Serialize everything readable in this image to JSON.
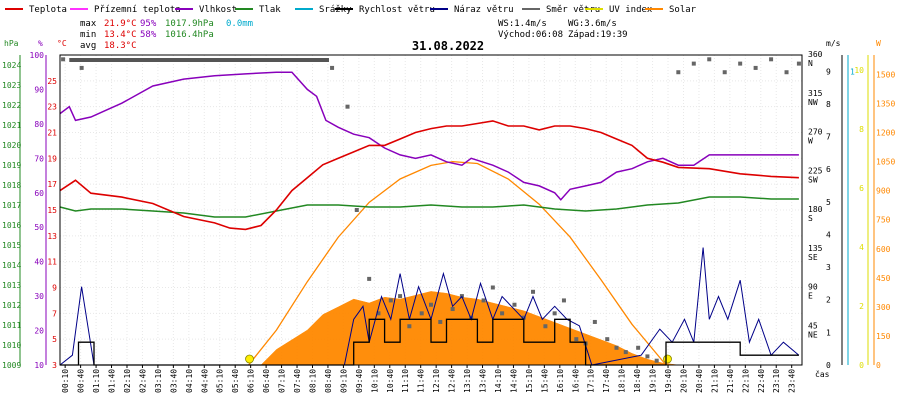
{
  "date": "31.08.2022",
  "legend": [
    {
      "label": "Teplota",
      "color": "#dd0000"
    },
    {
      "label": "Přízemní teplota",
      "color": "#ff33ff"
    },
    {
      "label": "Vlhkost",
      "color": "#8800bb"
    },
    {
      "label": "Tlak",
      "color": "#228822"
    },
    {
      "label": "Srážky",
      "color": "#00aacc"
    },
    {
      "label": "Rychlost větru",
      "color": "#000000"
    },
    {
      "label": "Náraz větru",
      "color": "#000088"
    },
    {
      "label": "Směr větru",
      "color": "#666666"
    },
    {
      "label": "UV index",
      "color": "#dddd00"
    },
    {
      "label": "Solar",
      "color": "#ff8800"
    }
  ],
  "stats": {
    "max_label": "max",
    "max_temp": "21.9°C",
    "max_hum": "95%",
    "max_press": "1017.9hPa",
    "max_rain": "0.0mm",
    "min_label": "min",
    "min_temp": "13.4°C",
    "min_hum": "58%",
    "min_press": "1016.4hPa",
    "avg_label": "avg",
    "avg_temp": "18.3°C",
    "ws": "WS:1.4m/s",
    "wg": "WG:3.6m/s",
    "sunrise": "Východ:06:08",
    "sunset": "Západ:19:39"
  },
  "axes": {
    "hpa_unit": "hPa",
    "pct_unit": "%",
    "temp_unit": "°C",
    "ms_unit": "m/s",
    "w_unit": "W",
    "hpa_ticks": [
      "1024",
      "1023",
      "1022",
      "1021",
      "1020",
      "1019",
      "1018",
      "1017",
      "1016",
      "1015",
      "1014",
      "1013",
      "1012",
      "1011",
      "1010",
      "1009"
    ],
    "pct_ticks": [
      "100",
      "90",
      "80",
      "70",
      "60",
      "50",
      "40",
      "30",
      "20",
      "10"
    ],
    "temp_ticks": [
      "25",
      "23",
      "21",
      "19",
      "17",
      "15",
      "13",
      "11",
      "9",
      "7",
      "5",
      "3"
    ],
    "dir_ticks": [
      "360",
      "N",
      "315",
      "NW",
      "270",
      "W",
      "225",
      "SW",
      "180",
      "S",
      "135",
      "SE",
      "90",
      "E",
      "45",
      "NE"
    ],
    "ms_ticks": [
      "9",
      "8",
      "7",
      "6",
      "5",
      "4",
      "3",
      "2",
      "1",
      "0"
    ],
    "uv_ticks": [
      "10",
      "8",
      "6",
      "4",
      "2",
      "0"
    ],
    "w_ticks": [
      "1500",
      "1350",
      "1200",
      "1050",
      "900",
      "750",
      "600",
      "450",
      "300",
      "150",
      "0"
    ],
    "time_label": "čas",
    "time_ticks": [
      "00:10",
      "00:40",
      "01:10",
      "01:40",
      "02:10",
      "02:40",
      "03:10",
      "03:40",
      "04:10",
      "04:40",
      "05:10",
      "05:40",
      "06:10",
      "06:40",
      "07:10",
      "07:40",
      "08:10",
      "08:40",
      "09:10",
      "09:40",
      "10:10",
      "10:40",
      "11:10",
      "11:40",
      "12:10",
      "12:40",
      "13:10",
      "13:40",
      "14:10",
      "14:40",
      "15:10",
      "15:40",
      "16:10",
      "16:40",
      "17:10",
      "17:40",
      "18:10",
      "18:40",
      "19:10",
      "19:40",
      "20:10",
      "20:40",
      "21:10",
      "21:40",
      "22:10",
      "22:40",
      "23:10",
      "23:40"
    ]
  },
  "chart_data": {
    "type": "line",
    "x_unit": "hour",
    "temp_range": [
      3,
      27
    ],
    "humidity_range": [
      10,
      100
    ],
    "pressure_range": [
      1009,
      1024.5
    ],
    "wind_range": [
      0,
      9.5
    ],
    "solar_range": [
      0,
      1600
    ],
    "dir_range": [
      0,
      360
    ],
    "temperature": [
      [
        0,
        16.5
      ],
      [
        0.5,
        17.3
      ],
      [
        1,
        16.3
      ],
      [
        2,
        16
      ],
      [
        3,
        15.5
      ],
      [
        4,
        14.5
      ],
      [
        5,
        14
      ],
      [
        5.5,
        13.6
      ],
      [
        6,
        13.5
      ],
      [
        6.5,
        13.8
      ],
      [
        7,
        15
      ],
      [
        7.5,
        16.5
      ],
      [
        8,
        17.5
      ],
      [
        8.5,
        18.5
      ],
      [
        9,
        19
      ],
      [
        9.5,
        19.5
      ],
      [
        10,
        20
      ],
      [
        10.5,
        20
      ],
      [
        11,
        20.5
      ],
      [
        11.5,
        21
      ],
      [
        12,
        21.3
      ],
      [
        12.5,
        21.5
      ],
      [
        13,
        21.5
      ],
      [
        13.5,
        21.7
      ],
      [
        14,
        21.9
      ],
      [
        14.5,
        21.5
      ],
      [
        15,
        21.5
      ],
      [
        15.5,
        21.2
      ],
      [
        16,
        21.5
      ],
      [
        16.5,
        21.5
      ],
      [
        17,
        21.3
      ],
      [
        17.5,
        21
      ],
      [
        18,
        20.5
      ],
      [
        18.5,
        20
      ],
      [
        19,
        19
      ],
      [
        19.5,
        18.7
      ],
      [
        20,
        18.3
      ],
      [
        21,
        18.2
      ],
      [
        22,
        17.8
      ],
      [
        23,
        17.6
      ],
      [
        23.9,
        17.5
      ]
    ],
    "humidity": [
      [
        0,
        83
      ],
      [
        0.3,
        85
      ],
      [
        0.5,
        81
      ],
      [
        1,
        82
      ],
      [
        1.5,
        84
      ],
      [
        2,
        86
      ],
      [
        3,
        91
      ],
      [
        4,
        93
      ],
      [
        5,
        94
      ],
      [
        6,
        94.5
      ],
      [
        7,
        95
      ],
      [
        7.5,
        95
      ],
      [
        8,
        90
      ],
      [
        8.3,
        88
      ],
      [
        8.6,
        81
      ],
      [
        9,
        79
      ],
      [
        9.5,
        77
      ],
      [
        10,
        76
      ],
      [
        10.5,
        73
      ],
      [
        11,
        71
      ],
      [
        11.5,
        70
      ],
      [
        12,
        71
      ],
      [
        12.5,
        69
      ],
      [
        13,
        68
      ],
      [
        13.3,
        70
      ],
      [
        14,
        68
      ],
      [
        14.5,
        66
      ],
      [
        15,
        63
      ],
      [
        15.5,
        62
      ],
      [
        16,
        60
      ],
      [
        16.2,
        58
      ],
      [
        16.5,
        61
      ],
      [
        17,
        62
      ],
      [
        17.5,
        63
      ],
      [
        18,
        66
      ],
      [
        18.5,
        67
      ],
      [
        19,
        69
      ],
      [
        19.5,
        70
      ],
      [
        20,
        68
      ],
      [
        20.5,
        68
      ],
      [
        21,
        71
      ],
      [
        22,
        71
      ],
      [
        23,
        71
      ],
      [
        23.9,
        71
      ]
    ],
    "pressure": [
      [
        0,
        1016.9
      ],
      [
        0.5,
        1016.7
      ],
      [
        1,
        1016.8
      ],
      [
        2,
        1016.8
      ],
      [
        3,
        1016.7
      ],
      [
        4,
        1016.6
      ],
      [
        5,
        1016.4
      ],
      [
        6,
        1016.4
      ],
      [
        7,
        1016.7
      ],
      [
        8,
        1017
      ],
      [
        9,
        1017
      ],
      [
        10,
        1016.9
      ],
      [
        11,
        1016.9
      ],
      [
        12,
        1017
      ],
      [
        13,
        1016.9
      ],
      [
        14,
        1016.9
      ],
      [
        15,
        1017
      ],
      [
        16,
        1016.8
      ],
      [
        17,
        1016.7
      ],
      [
        18,
        1016.8
      ],
      [
        19,
        1017
      ],
      [
        20,
        1017.1
      ],
      [
        21,
        1017.4
      ],
      [
        22,
        1017.4
      ],
      [
        23,
        1017.3
      ],
      [
        23.9,
        1017.3
      ]
    ],
    "solar": [
      [
        0,
        0
      ],
      [
        6.5,
        0
      ],
      [
        7,
        80
      ],
      [
        7.5,
        130
      ],
      [
        8,
        180
      ],
      [
        8.5,
        260
      ],
      [
        9,
        300
      ],
      [
        9.5,
        340
      ],
      [
        10,
        320
      ],
      [
        10.5,
        350
      ],
      [
        11,
        340
      ],
      [
        11.5,
        360
      ],
      [
        12,
        380
      ],
      [
        12.5,
        370
      ],
      [
        13,
        350
      ],
      [
        13.5,
        340
      ],
      [
        14,
        320
      ],
      [
        14.5,
        300
      ],
      [
        15,
        280
      ],
      [
        15.5,
        250
      ],
      [
        16,
        220
      ],
      [
        16.5,
        190
      ],
      [
        17,
        160
      ],
      [
        17.5,
        130
      ],
      [
        18,
        100
      ],
      [
        18.5,
        60
      ],
      [
        19,
        30
      ],
      [
        19.5,
        10
      ],
      [
        20,
        0
      ],
      [
        23.9,
        0
      ]
    ],
    "solar_max": [
      [
        6.1,
        0
      ],
      [
        7,
        180
      ],
      [
        8,
        430
      ],
      [
        9,
        660
      ],
      [
        10,
        840
      ],
      [
        11,
        960
      ],
      [
        12,
        1030
      ],
      [
        12.7,
        1050
      ],
      [
        13.5,
        1040
      ],
      [
        14.5,
        960
      ],
      [
        15.5,
        830
      ],
      [
        16.5,
        660
      ],
      [
        17.5,
        440
      ],
      [
        18.5,
        210
      ],
      [
        19.6,
        0
      ]
    ],
    "wind_speed": [
      [
        0,
        0
      ],
      [
        0.6,
        0
      ],
      [
        0.6,
        0.7
      ],
      [
        1.1,
        0.7
      ],
      [
        1.1,
        0
      ],
      [
        9.5,
        0
      ],
      [
        9.5,
        0.7
      ],
      [
        10,
        0.7
      ],
      [
        10,
        1.4
      ],
      [
        10.5,
        1.4
      ],
      [
        10.5,
        0.7
      ],
      [
        11,
        0.7
      ],
      [
        11,
        1.4
      ],
      [
        12,
        1.4
      ],
      [
        12,
        0.7
      ],
      [
        12.5,
        0.7
      ],
      [
        12.5,
        1.4
      ],
      [
        13.5,
        1.4
      ],
      [
        13.5,
        0.7
      ],
      [
        14,
        0.7
      ],
      [
        14,
        1.4
      ],
      [
        15,
        1.4
      ],
      [
        15,
        0.7
      ],
      [
        16,
        0.7
      ],
      [
        16,
        1.4
      ],
      [
        16.5,
        1.4
      ],
      [
        16.5,
        0.7
      ],
      [
        17,
        0.7
      ],
      [
        17,
        0
      ],
      [
        19.6,
        0
      ],
      [
        19.6,
        0.7
      ],
      [
        22,
        0.7
      ],
      [
        22,
        0.3
      ],
      [
        23.9,
        0.3
      ]
    ],
    "wind_gust": [
      [
        0,
        0
      ],
      [
        0.4,
        0.3
      ],
      [
        0.7,
        2.4
      ],
      [
        0.9,
        1.2
      ],
      [
        1.1,
        0
      ],
      [
        9.2,
        0
      ],
      [
        9.5,
        1.4
      ],
      [
        9.8,
        1.8
      ],
      [
        10,
        0.7
      ],
      [
        10.4,
        2.1
      ],
      [
        10.7,
        1.4
      ],
      [
        11,
        2.8
      ],
      [
        11.3,
        1.4
      ],
      [
        11.6,
        2.4
      ],
      [
        12,
        1.4
      ],
      [
        12.4,
        2.8
      ],
      [
        12.7,
        1.8
      ],
      [
        13,
        2.1
      ],
      [
        13.3,
        1.4
      ],
      [
        13.6,
        2.5
      ],
      [
        14,
        1.4
      ],
      [
        14.3,
        2.1
      ],
      [
        14.6,
        1.8
      ],
      [
        15,
        1.4
      ],
      [
        15.3,
        2.1
      ],
      [
        15.6,
        1.4
      ],
      [
        16,
        1.8
      ],
      [
        16.4,
        1.4
      ],
      [
        16.8,
        1.2
      ],
      [
        17.2,
        0
      ],
      [
        18.8,
        0.3
      ],
      [
        19.4,
        1.1
      ],
      [
        19.8,
        0.7
      ],
      [
        20.2,
        1.4
      ],
      [
        20.5,
        0.7
      ],
      [
        20.8,
        3.6
      ],
      [
        21,
        1.4
      ],
      [
        21.3,
        2.1
      ],
      [
        21.6,
        1.4
      ],
      [
        22,
        2.6
      ],
      [
        22.3,
        0.7
      ],
      [
        22.6,
        1.4
      ],
      [
        23,
        0.3
      ],
      [
        23.4,
        0.7
      ],
      [
        23.9,
        0.3
      ]
    ],
    "wind_dir": [
      [
        0.1,
        355
      ],
      [
        0.7,
        345
      ],
      [
        8.8,
        345
      ],
      [
        9.3,
        300
      ],
      [
        9.6,
        180
      ],
      [
        10,
        100
      ],
      [
        10.3,
        60
      ],
      [
        10.7,
        75
      ],
      [
        11,
        80
      ],
      [
        11.3,
        45
      ],
      [
        11.7,
        60
      ],
      [
        12,
        70
      ],
      [
        12.3,
        50
      ],
      [
        12.7,
        65
      ],
      [
        13,
        80
      ],
      [
        13.3,
        55
      ],
      [
        13.7,
        75
      ],
      [
        14,
        90
      ],
      [
        14.3,
        60
      ],
      [
        14.7,
        70
      ],
      [
        15,
        55
      ],
      [
        15.3,
        85
      ],
      [
        15.7,
        45
      ],
      [
        16,
        60
      ],
      [
        16.3,
        75
      ],
      [
        16.7,
        30
      ],
      [
        17,
        25
      ],
      [
        17.3,
        50
      ],
      [
        17.7,
        30
      ],
      [
        18,
        20
      ],
      [
        18.3,
        15
      ],
      [
        18.7,
        20
      ],
      [
        19,
        10
      ],
      [
        19.3,
        5
      ],
      [
        20,
        340
      ],
      [
        20.5,
        350
      ],
      [
        21,
        355
      ],
      [
        21.5,
        340
      ],
      [
        22,
        350
      ],
      [
        22.5,
        345
      ],
      [
        23,
        355
      ],
      [
        23.5,
        340
      ],
      [
        23.9,
        350
      ]
    ],
    "bar_series": [
      {
        "name": "Teplota",
        "unit": "°C"
      }
    ]
  }
}
